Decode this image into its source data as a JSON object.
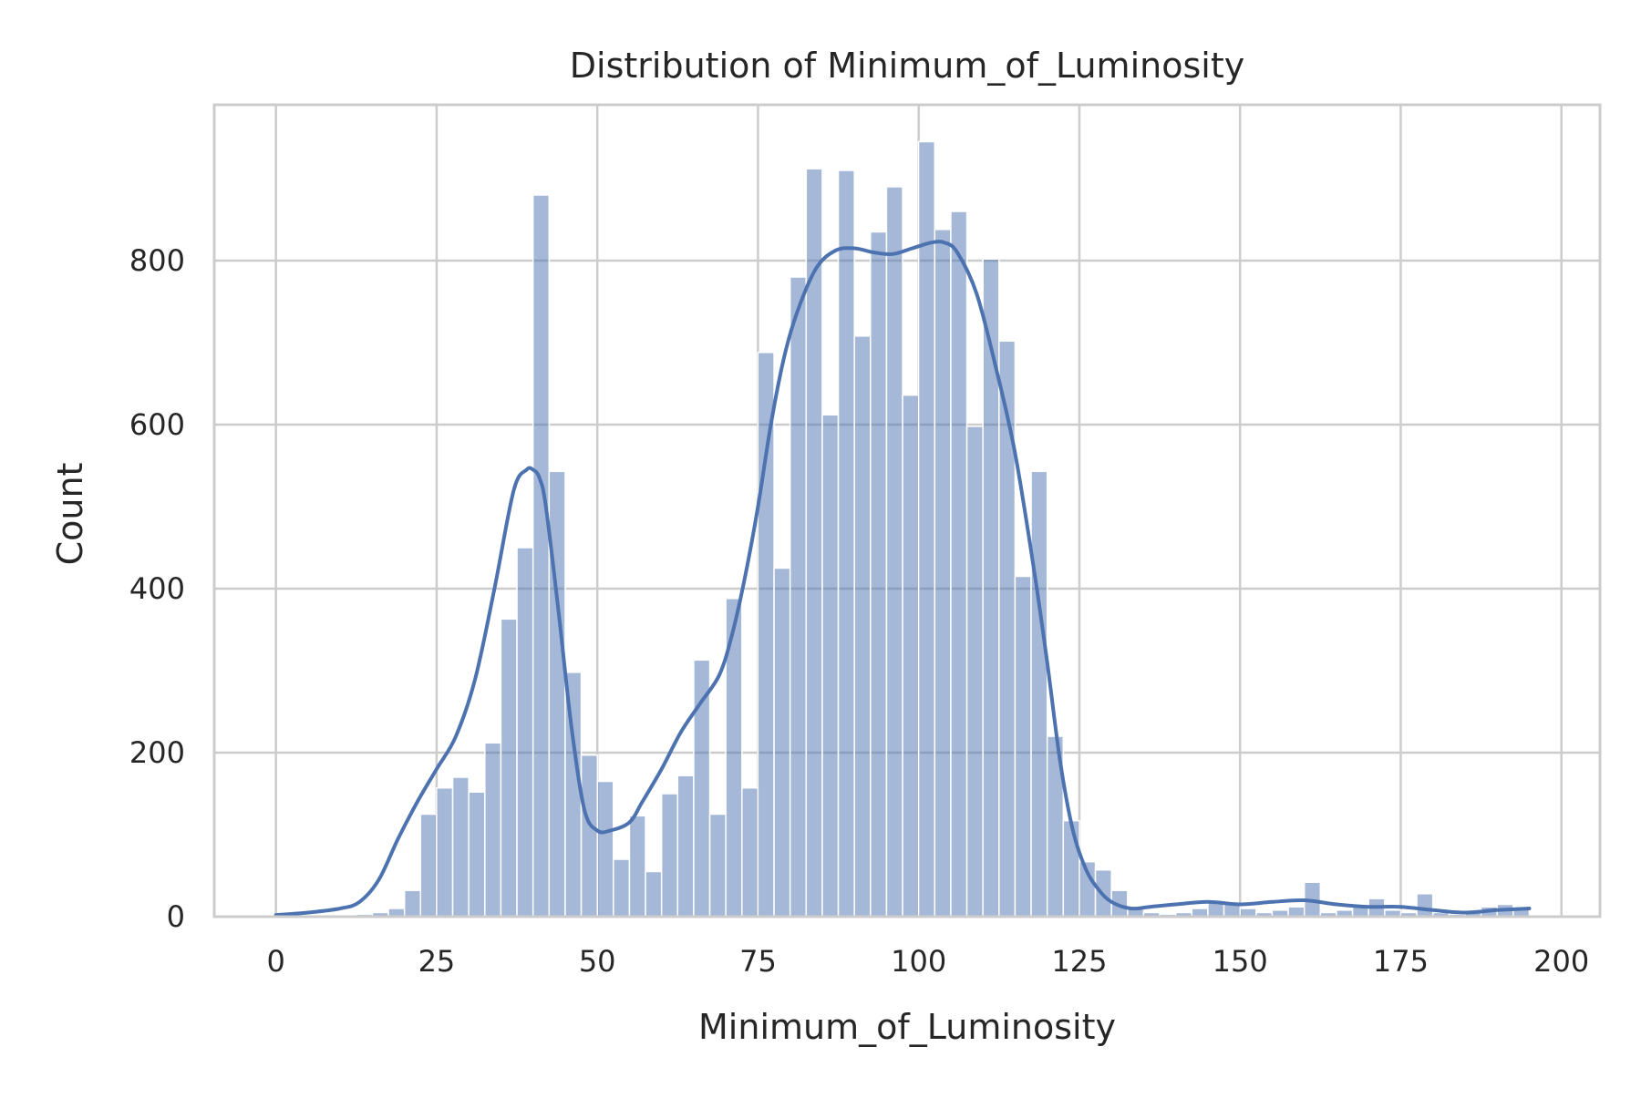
{
  "chart_data": {
    "type": "histogram",
    "title": "Distribution of Minimum_of_Luminosity",
    "xlabel": "Minimum_of_Luminosity",
    "ylabel": "Count",
    "xlim": [
      -9.6,
      206
    ],
    "ylim": [
      0,
      990
    ],
    "x_ticks": [
      0,
      25,
      50,
      75,
      100,
      125,
      150,
      175,
      200
    ],
    "y_ticks": [
      0,
      200,
      400,
      600,
      800
    ],
    "grid": true,
    "bar_color": "#4c72b0",
    "bar_opacity": 0.5,
    "kde_color": "#4c72b0",
    "bins": {
      "start": 0,
      "width": 2.5,
      "counts": [
        0,
        0,
        0,
        0,
        0,
        3,
        5,
        10,
        32,
        125,
        157,
        170,
        152,
        212,
        363,
        450,
        880,
        543,
        298,
        197,
        165,
        70,
        123,
        55,
        150,
        172,
        313,
        125,
        388,
        157,
        688,
        425,
        780,
        912,
        612,
        910,
        708,
        835,
        890,
        636,
        945,
        838,
        860,
        598,
        802,
        702,
        415,
        543,
        220,
        117,
        67,
        57,
        32,
        12,
        5,
        3,
        5,
        10,
        18,
        15,
        10,
        5,
        8,
        12,
        42,
        5,
        8,
        12,
        22,
        8,
        5,
        28,
        5,
        3,
        5,
        12,
        15,
        12
      ]
    },
    "kde": {
      "x": [
        0,
        5,
        10,
        13,
        16,
        19,
        22,
        25,
        28,
        31,
        34,
        37,
        39,
        40,
        41,
        42,
        44,
        46,
        48,
        50,
        52,
        55,
        57,
        60,
        63,
        66,
        69,
        71,
        73,
        75,
        77,
        79,
        81,
        84,
        87,
        90,
        93,
        96,
        99,
        102,
        104,
        106,
        109,
        112,
        115,
        118,
        120,
        122,
        124,
        126,
        128,
        130,
        133,
        136,
        140,
        145,
        150,
        155,
        160,
        165,
        170,
        175,
        180,
        185,
        190,
        195
      ],
      "y": [
        2,
        5,
        10,
        18,
        45,
        95,
        140,
        180,
        220,
        290,
        400,
        520,
        545,
        545,
        535,
        500,
        370,
        230,
        130,
        105,
        105,
        115,
        140,
        180,
        225,
        260,
        295,
        345,
        415,
        500,
        600,
        680,
        735,
        790,
        812,
        815,
        810,
        808,
        815,
        822,
        822,
        810,
        760,
        670,
        565,
        420,
        310,
        190,
        105,
        58,
        33,
        18,
        10,
        12,
        15,
        18,
        15,
        18,
        20,
        15,
        12,
        12,
        8,
        5,
        8,
        10
      ]
    }
  }
}
